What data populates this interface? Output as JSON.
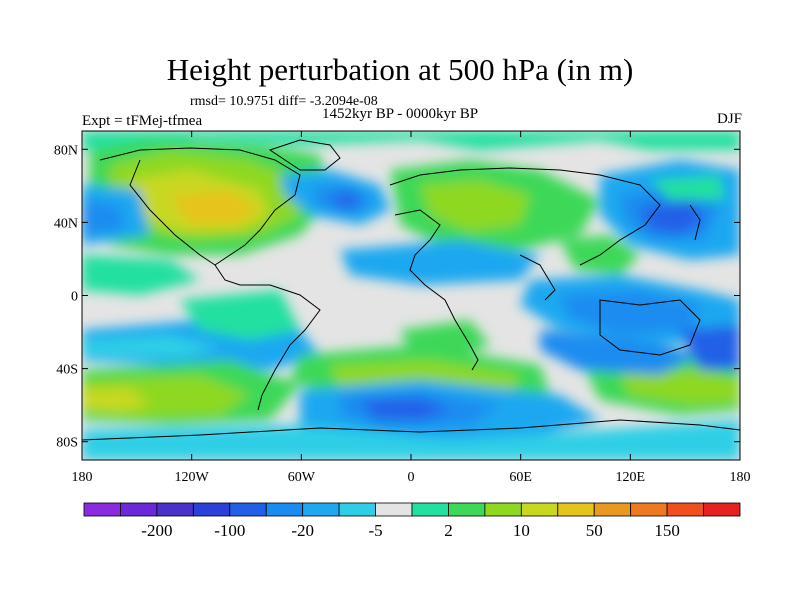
{
  "title": "Height perturbation at 500 hPa (in m)",
  "stats_line": "rmsd= 10.9751 diff= -3.2094e-08",
  "period_line": "1452kyr BP - 0000kyr BP",
  "experiment_label": "Expt = tFMej-tfmea",
  "season_label": "DJF",
  "lat_ticks": [
    {
      "value": 80,
      "label": "80N"
    },
    {
      "value": 40,
      "label": "40N"
    },
    {
      "value": 0,
      "label": "0"
    },
    {
      "value": -40,
      "label": "40S"
    },
    {
      "value": -80,
      "label": "80S"
    }
  ],
  "lon_ticks": [
    {
      "value": -180,
      "label": "180"
    },
    {
      "value": -120,
      "label": "120W"
    },
    {
      "value": -60,
      "label": "60W"
    },
    {
      "value": 0,
      "label": "0"
    },
    {
      "value": 60,
      "label": "60E"
    },
    {
      "value": 120,
      "label": "120E"
    },
    {
      "value": 180,
      "label": "180"
    }
  ],
  "colorbar": {
    "colors": [
      "#8a2be2",
      "#6a28d8",
      "#4a32c8",
      "#2b40d8",
      "#2060e8",
      "#1a8cf0",
      "#1fa8f0",
      "#2ecfe6",
      "#e4e4e4",
      "#22e0a0",
      "#3ed858",
      "#8ed820",
      "#c8d820",
      "#e6c41e",
      "#e89a20",
      "#ee7a20",
      "#f05020",
      "#e82020"
    ],
    "labels": [
      {
        "after_index": 1,
        "text": "-200"
      },
      {
        "after_index": 3,
        "text": "-100"
      },
      {
        "after_index": 5,
        "text": "-20"
      },
      {
        "after_index": 7,
        "text": "-5"
      },
      {
        "after_index": 9,
        "text": "2"
      },
      {
        "after_index": 11,
        "text": "10"
      },
      {
        "after_index": 13,
        "text": "50"
      },
      {
        "after_index": 15,
        "text": "150"
      }
    ]
  }
}
